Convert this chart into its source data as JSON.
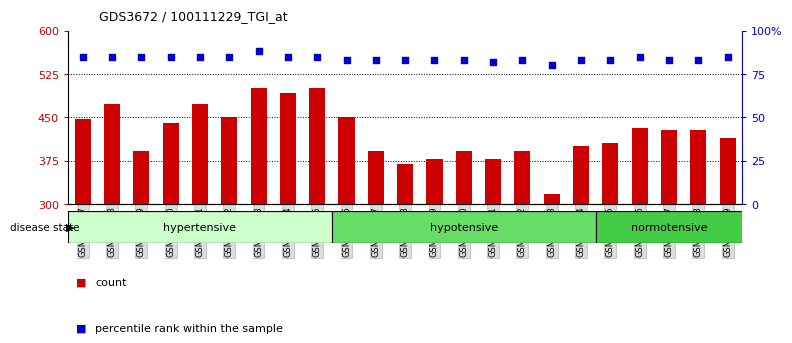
{
  "title": "GDS3672 / 100111229_TGI_at",
  "samples": [
    "GSM493487",
    "GSM493488",
    "GSM493489",
    "GSM493490",
    "GSM493491",
    "GSM493492",
    "GSM493493",
    "GSM493494",
    "GSM493495",
    "GSM493496",
    "GSM493497",
    "GSM493498",
    "GSM493499",
    "GSM493500",
    "GSM493501",
    "GSM493502",
    "GSM493503",
    "GSM493504",
    "GSM493505",
    "GSM493506",
    "GSM493507",
    "GSM493508",
    "GSM493509"
  ],
  "counts": [
    448,
    473,
    392,
    440,
    473,
    450,
    500,
    493,
    500,
    450,
    392,
    370,
    378,
    392,
    378,
    392,
    318,
    400,
    405,
    432,
    428,
    428,
    415
  ],
  "percentile_ranks": [
    85,
    85,
    85,
    85,
    85,
    85,
    88,
    85,
    85,
    83,
    83,
    83,
    83,
    83,
    82,
    83,
    80,
    83,
    83,
    85,
    83,
    83,
    85
  ],
  "ymin": 300,
  "ymax": 600,
  "yticks_left": [
    300,
    375,
    450,
    525,
    600
  ],
  "yticks_right": [
    0,
    25,
    50,
    75,
    100
  ],
  "bar_color": "#CC0000",
  "dot_color": "#0000CC",
  "bg_color": "#FFFFFF",
  "group_data": [
    {
      "name": "hypertensive",
      "start": 0,
      "end": 9,
      "color": "#CCFFCC"
    },
    {
      "name": "hypotensive",
      "start": 9,
      "end": 18,
      "color": "#66DD66"
    },
    {
      "name": "normotensive",
      "start": 18,
      "end": 23,
      "color": "#44CC44"
    }
  ],
  "legend_count_color": "#CC0000",
  "legend_pct_color": "#0000CC"
}
